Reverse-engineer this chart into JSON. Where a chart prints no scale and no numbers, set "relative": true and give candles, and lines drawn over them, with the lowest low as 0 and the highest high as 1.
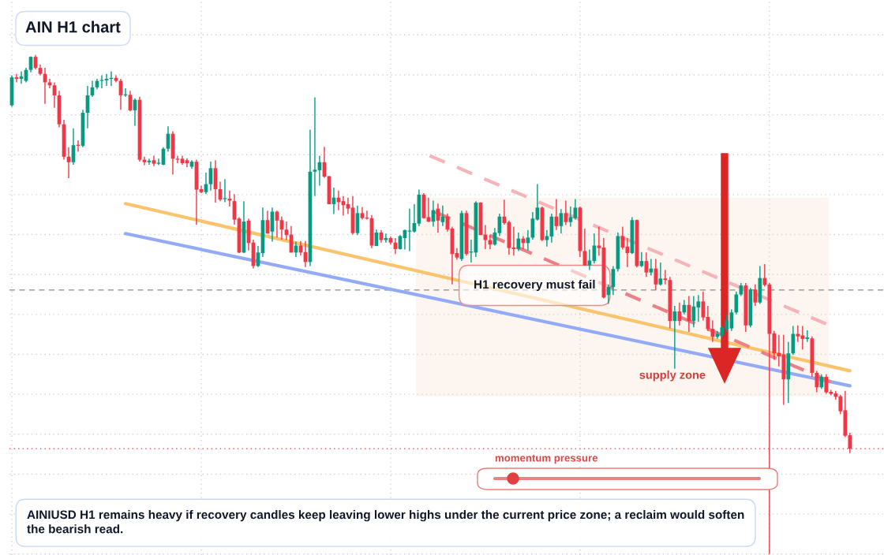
{
  "chart_data": {
    "type": "candlestick",
    "title": "AIN H1 chart",
    "relative": true,
    "grid": true,
    "tick_labels": false,
    "categories": [
      null,
      null,
      null,
      null,
      null,
      null,
      null,
      null,
      null,
      null,
      null,
      null,
      null,
      null,
      null,
      null,
      null,
      null,
      null,
      null,
      null,
      null,
      null,
      null,
      null,
      null,
      null,
      null,
      null,
      null,
      null,
      null,
      null,
      null,
      null,
      null,
      null,
      null,
      null,
      null,
      null,
      null,
      null,
      null,
      null,
      null,
      null,
      null,
      null,
      null,
      null,
      null,
      null,
      null,
      null,
      null,
      null,
      null,
      null,
      null,
      null,
      null,
      null,
      null,
      null,
      null,
      null,
      null,
      null,
      null,
      null,
      null,
      null,
      null,
      null,
      null,
      null,
      null,
      null,
      null,
      null,
      null,
      null,
      null,
      null,
      null,
      null,
      null,
      null,
      null,
      null,
      null,
      null,
      null,
      null,
      null,
      null,
      null,
      null,
      null,
      null,
      null,
      null,
      null,
      null,
      null,
      null,
      null,
      null,
      null,
      null,
      null,
      null,
      null,
      null,
      null,
      null,
      null,
      null,
      null,
      null,
      null,
      null,
      null,
      null,
      null,
      null,
      null,
      null,
      null,
      null,
      null,
      null,
      null,
      null,
      null,
      null,
      null,
      null,
      null,
      null,
      null,
      null,
      null,
      null,
      null,
      null,
      null,
      null,
      null,
      null,
      null,
      null,
      null,
      null,
      null,
      null,
      null,
      null,
      null,
      null,
      null,
      null,
      null,
      null,
      null,
      null,
      null,
      null,
      null,
      null,
      null,
      null,
      null,
      null,
      null,
      null,
      null
    ],
    "ohlc": [
      [
        0.899,
        0.959,
        0.896,
        0.955
      ],
      [
        0.955,
        0.962,
        0.945,
        0.952
      ],
      [
        0.952,
        0.967,
        0.942,
        0.957
      ],
      [
        0.948,
        0.974,
        0.945,
        0.97
      ],
      [
        0.97,
        0.997,
        0.965,
        0.996
      ],
      [
        0.996,
        1,
        0.971,
        0.974
      ],
      [
        0.974,
        0.981,
        0.959,
        0.962
      ],
      [
        0.962,
        0.974,
        0.902,
        0.945
      ],
      [
        0.945,
        0.952,
        0.933,
        0.939
      ],
      [
        0.939,
        0.945,
        0.894,
        0.919
      ],
      [
        0.919,
        0.928,
        0.855,
        0.861
      ],
      [
        0.861,
        0.87,
        0.79,
        0.796
      ],
      [
        0.796,
        0.815,
        0.753,
        0.785
      ],
      [
        0.785,
        0.853,
        0.78,
        0.819
      ],
      [
        0.819,
        0.829,
        0.806,
        0.818
      ],
      [
        0.818,
        0.89,
        0.815,
        0.884
      ],
      [
        0.884,
        0.938,
        0.853,
        0.919
      ],
      [
        0.919,
        0.948,
        0.916,
        0.935
      ],
      [
        0.935,
        0.952,
        0.931,
        0.948
      ],
      [
        0.948,
        0.959,
        0.933,
        0.949
      ],
      [
        0.949,
        0.962,
        0.938,
        0.952
      ],
      [
        0.952,
        0.967,
        0.938,
        0.954
      ],
      [
        0.954,
        0.959,
        0.945,
        0.948
      ],
      [
        0.948,
        0.952,
        0.89,
        0.919
      ],
      [
        0.919,
        0.933,
        0.916,
        0.92
      ],
      [
        0.92,
        0.928,
        0.887,
        0.889
      ],
      [
        0.889,
        0.913,
        0.858,
        0.91
      ],
      [
        0.91,
        0.916,
        0.786,
        0.79
      ],
      [
        0.79,
        0.796,
        0.779,
        0.785
      ],
      [
        0.785,
        0.792,
        0.78,
        0.788
      ],
      [
        0.789,
        0.798,
        0.777,
        0.782
      ],
      [
        0.782,
        0.792,
        0.779,
        0.783
      ],
      [
        0.78,
        0.815,
        0.779,
        0.812
      ],
      [
        0.812,
        0.857,
        0.806,
        0.842
      ],
      [
        0.842,
        0.847,
        0.76,
        0.792
      ],
      [
        0.792,
        0.798,
        0.783,
        0.79
      ],
      [
        0.792,
        0.798,
        0.78,
        0.783
      ],
      [
        0.789,
        0.793,
        0.775,
        0.783
      ],
      [
        0.776,
        0.789,
        0.772,
        0.786
      ],
      [
        0.786,
        0.79,
        0.66,
        0.73
      ],
      [
        0.731,
        0.738,
        0.723,
        0.725
      ],
      [
        0.725,
        0.764,
        0.721,
        0.741
      ],
      [
        0.741,
        0.786,
        0.728,
        0.773
      ],
      [
        0.773,
        0.789,
        0.704,
        0.731
      ],
      [
        0.731,
        0.746,
        0.707,
        0.71
      ],
      [
        0.711,
        0.751,
        0.705,
        0.712
      ],
      [
        0.712,
        0.728,
        0.696,
        0.708
      ],
      [
        0.707,
        0.721,
        0.66,
        0.67
      ],
      [
        0.672,
        0.675,
        0.603,
        0.604
      ],
      [
        0.604,
        0.707,
        0.603,
        0.666
      ],
      [
        0.668,
        0.672,
        0.608,
        0.623
      ],
      [
        0.624,
        0.63,
        0.572,
        0.577
      ],
      [
        0.577,
        0.617,
        0.575,
        0.604
      ],
      [
        0.603,
        0.694,
        0.595,
        0.669
      ],
      [
        0.669,
        0.688,
        0.642,
        0.642
      ],
      [
        0.646,
        0.694,
        0.626,
        0.686
      ],
      [
        0.686,
        0.688,
        0.634,
        0.668
      ],
      [
        0.669,
        0.676,
        0.63,
        0.65
      ],
      [
        0.65,
        0.666,
        0.629,
        0.639
      ],
      [
        0.64,
        0.657,
        0.604,
        0.604
      ],
      [
        0.604,
        0.626,
        0.595,
        0.618
      ],
      [
        0.618,
        0.627,
        0.598,
        0.604
      ],
      [
        0.605,
        0.627,
        0.575,
        0.585
      ],
      [
        0.585,
        0.85,
        0.577,
        0.766
      ],
      [
        0.766,
        0.915,
        0.717,
        0.77
      ],
      [
        0.769,
        0.798,
        0.738,
        0.785
      ],
      [
        0.785,
        0.816,
        0.754,
        0.756
      ],
      [
        0.757,
        0.757,
        0.701,
        0.701
      ],
      [
        0.701,
        0.734,
        0.681,
        0.714
      ],
      [
        0.714,
        0.728,
        0.689,
        0.705
      ],
      [
        0.707,
        0.717,
        0.678,
        0.699
      ],
      [
        0.701,
        0.714,
        0.681,
        0.692
      ],
      [
        0.694,
        0.717,
        0.64,
        0.643
      ],
      [
        0.643,
        0.698,
        0.639,
        0.683
      ],
      [
        0.683,
        0.695,
        0.67,
        0.673
      ],
      [
        0.673,
        0.688,
        0.67,
        0.672
      ],
      [
        0.673,
        0.679,
        0.613,
        0.618
      ],
      [
        0.617,
        0.65,
        0.617,
        0.644
      ],
      [
        0.644,
        0.649,
        0.624,
        0.629
      ],
      [
        0.629,
        0.642,
        0.624,
        0.633
      ],
      [
        0.633,
        0.636,
        0.62,
        0.624
      ],
      [
        0.624,
        0.633,
        0.601,
        0.611
      ],
      [
        0.611,
        0.639,
        0.61,
        0.637
      ],
      [
        0.633,
        0.65,
        0.61,
        0.649
      ],
      [
        0.646,
        0.692,
        0.607,
        0.647
      ],
      [
        0.646,
        0.701,
        0.644,
        0.663
      ],
      [
        0.662,
        0.73,
        0.657,
        0.72
      ],
      [
        0.72,
        0.723,
        0.672,
        0.673
      ],
      [
        0.675,
        0.714,
        0.665,
        0.666
      ],
      [
        0.666,
        0.708,
        0.656,
        0.689
      ],
      [
        0.692,
        0.702,
        0.644,
        0.668
      ],
      [
        0.665,
        0.698,
        0.657,
        0.676
      ],
      [
        0.676,
        0.682,
        0.646,
        0.65
      ],
      [
        0.652,
        0.656,
        0.54,
        0.601
      ],
      [
        0.603,
        0.613,
        0.59,
        0.594
      ],
      [
        0.591,
        0.688,
        0.587,
        0.683
      ],
      [
        0.683,
        0.688,
        0.598,
        0.601
      ],
      [
        0.604,
        0.63,
        0.584,
        0.605
      ],
      [
        0.604,
        0.707,
        0.595,
        0.704
      ],
      [
        0.704,
        0.705,
        0.639,
        0.639
      ],
      [
        0.64,
        0.659,
        0.611,
        0.629
      ],
      [
        0.629,
        0.639,
        0.611,
        0.62
      ],
      [
        0.62,
        0.653,
        0.618,
        0.644
      ],
      [
        0.643,
        0.682,
        0.637,
        0.676
      ],
      [
        0.676,
        0.71,
        0.66,
        0.663
      ],
      [
        0.665,
        0.668,
        0.6,
        0.613
      ],
      [
        0.614,
        0.656,
        0.598,
        0.611
      ],
      [
        0.611,
        0.644,
        0.607,
        0.632
      ],
      [
        0.632,
        0.637,
        0.611,
        0.623
      ],
      [
        0.623,
        0.649,
        0.608,
        0.634
      ],
      [
        0.634,
        0.685,
        0.63,
        0.672
      ],
      [
        0.67,
        0.741,
        0.668,
        0.694
      ],
      [
        0.694,
        0.696,
        0.627,
        0.629
      ],
      [
        0.629,
        0.649,
        0.616,
        0.637
      ],
      [
        0.636,
        0.682,
        0.624,
        0.676
      ],
      [
        0.676,
        0.711,
        0.649,
        0.657
      ],
      [
        0.657,
        0.691,
        0.642,
        0.683
      ],
      [
        0.683,
        0.708,
        0.659,
        0.665
      ],
      [
        0.665,
        0.696,
        0.656,
        0.675
      ],
      [
        0.673,
        0.711,
        0.67,
        0.694
      ],
      [
        0.694,
        0.696,
        0.595,
        0.607
      ],
      [
        0.607,
        0.652,
        0.578,
        0.578
      ],
      [
        0.578,
        0.61,
        0.569,
        0.588
      ],
      [
        0.587,
        0.642,
        0.582,
        0.618
      ],
      [
        0.618,
        0.656,
        0.598,
        0.613
      ],
      [
        0.614,
        0.633,
        0.512,
        0.514
      ],
      [
        0.519,
        0.54,
        0.501,
        0.535
      ],
      [
        0.535,
        0.577,
        0.519,
        0.571
      ],
      [
        0.571,
        0.644,
        0.566,
        0.637
      ],
      [
        0.637,
        0.656,
        0.61,
        0.614
      ],
      [
        0.616,
        0.633,
        0.575,
        0.603
      ],
      [
        0.603,
        0.675,
        0.601,
        0.669
      ],
      [
        0.669,
        0.67,
        0.574,
        0.577
      ],
      [
        0.577,
        0.605,
        0.575,
        0.587
      ],
      [
        0.587,
        0.604,
        0.555,
        0.564
      ],
      [
        0.564,
        0.591,
        0.558,
        0.572
      ],
      [
        0.572,
        0.591,
        0.529,
        0.54
      ],
      [
        0.54,
        0.584,
        0.538,
        0.552
      ],
      [
        0.552,
        0.569,
        0.54,
        0.549
      ],
      [
        0.549,
        0.555,
        0.452,
        0.467
      ],
      [
        0.467,
        0.497,
        0.371,
        0.486
      ],
      [
        0.486,
        0.504,
        0.458,
        0.467
      ],
      [
        0.484,
        0.509,
        0.48,
        0.499
      ],
      [
        0.499,
        0.517,
        0.445,
        0.467
      ],
      [
        0.467,
        0.517,
        0.454,
        0.496
      ],
      [
        0.494,
        0.519,
        0.465,
        0.506
      ],
      [
        0.506,
        0.526,
        0.468,
        0.474
      ],
      [
        0.475,
        0.497,
        0.447,
        0.451
      ],
      [
        0.451,
        0.468,
        0.425,
        0.435
      ],
      [
        0.435,
        0.447,
        0.431,
        0.441
      ],
      [
        0.439,
        0.457,
        0.434,
        0.454
      ],
      [
        0.451,
        0.48,
        0.445,
        0.468
      ],
      [
        0.452,
        0.49,
        0.447,
        0.484
      ],
      [
        0.484,
        0.526,
        0.48,
        0.52
      ],
      [
        0.52,
        0.543,
        0.517,
        0.538
      ],
      [
        0.538,
        0.543,
        0.445,
        0.458
      ],
      [
        0.458,
        0.533,
        0.454,
        0.53
      ],
      [
        0.53,
        0.54,
        0.497,
        0.504
      ],
      [
        0.504,
        0.577,
        0.501,
        0.553
      ],
      [
        0.553,
        0.581,
        0.536,
        0.539
      ],
      [
        0.54,
        0.543,
        0,
        0.441
      ],
      [
        0.442,
        0.447,
        0.389,
        0.402
      ],
      [
        0.403,
        0.439,
        0.376,
        0.396
      ],
      [
        0.4,
        0.439,
        0.299,
        0.35
      ],
      [
        0.35,
        0.425,
        0.303,
        0.402
      ],
      [
        0.402,
        0.457,
        0.399,
        0.441
      ],
      [
        0.441,
        0.458,
        0.425,
        0.436
      ],
      [
        0.438,
        0.457,
        0.41,
        0.431
      ],
      [
        0.431,
        0.448,
        0.425,
        0.434
      ],
      [
        0.432,
        0.436,
        0.355,
        0.363
      ],
      [
        0.363,
        0.367,
        0.324,
        0.334
      ],
      [
        0.334,
        0.36,
        0.331,
        0.355
      ],
      [
        0.355,
        0.36,
        0.321,
        0.324
      ],
      [
        0.325,
        0.329,
        0.318,
        0.321
      ],
      [
        0.322,
        0.327,
        0.309,
        0.315
      ],
      [
        0.316,
        0.319,
        0.28,
        0.286
      ],
      [
        0.288,
        0.327,
        0.234,
        0.237
      ],
      [
        0.238,
        0.243,
        0.202,
        0.211
      ]
    ],
    "series": [
      {
        "type": "line",
        "values": [
          null,
          null,
          null,
          null,
          null,
          null,
          null,
          null,
          null,
          null,
          null,
          null,
          null,
          null,
          null,
          null,
          null,
          null,
          null,
          null,
          null,
          null,
          null,
          null,
          0.702,
          null,
          null,
          null,
          null,
          null,
          null,
          null,
          null,
          null,
          null,
          null,
          null,
          null,
          null,
          null,
          null,
          null,
          null,
          null,
          null,
          null,
          null,
          null,
          null,
          null,
          null,
          null,
          null,
          null,
          null,
          null,
          null,
          null,
          null,
          null,
          null,
          null,
          null,
          null,
          null,
          null,
          null,
          null,
          null,
          null,
          null,
          null,
          null,
          null,
          null,
          null,
          null,
          null,
          null,
          null,
          null,
          null,
          null,
          null,
          null,
          null,
          null,
          null,
          null,
          null,
          null,
          null,
          null,
          null,
          null,
          null,
          null,
          null,
          null,
          null,
          null,
          null,
          null,
          null,
          null,
          null,
          null,
          null,
          null,
          null,
          null,
          null,
          null,
          null,
          null,
          null,
          null,
          null,
          null,
          null,
          null,
          null,
          null,
          null,
          null,
          null,
          null,
          null,
          null,
          null,
          null,
          null,
          null,
          null,
          null,
          null,
          null,
          null,
          null,
          null,
          null,
          null,
          null,
          null,
          null,
          null,
          null,
          null,
          null,
          null,
          null,
          null,
          null,
          null,
          null,
          null,
          null,
          null,
          null,
          null,
          null,
          null,
          null,
          null,
          null,
          null,
          null,
          null,
          null,
          null,
          null,
          null,
          null,
          null,
          null,
          null,
          null,
          0.367
        ],
        "color": "#f9c46b",
        "line_style": "solid"
      },
      {
        "type": "line",
        "values": [
          null,
          null,
          null,
          null,
          null,
          null,
          null,
          null,
          null,
          null,
          null,
          null,
          null,
          null,
          null,
          null,
          null,
          null,
          null,
          null,
          null,
          null,
          null,
          null,
          0.642,
          null,
          null,
          null,
          null,
          null,
          null,
          null,
          null,
          null,
          null,
          null,
          null,
          null,
          null,
          null,
          null,
          null,
          null,
          null,
          null,
          null,
          null,
          null,
          null,
          null,
          null,
          null,
          null,
          null,
          null,
          null,
          null,
          null,
          null,
          null,
          null,
          null,
          null,
          null,
          null,
          null,
          null,
          null,
          null,
          null,
          null,
          null,
          null,
          null,
          null,
          null,
          null,
          null,
          null,
          null,
          null,
          null,
          null,
          null,
          null,
          null,
          null,
          null,
          null,
          null,
          null,
          null,
          null,
          null,
          null,
          null,
          null,
          null,
          null,
          null,
          null,
          null,
          null,
          null,
          null,
          null,
          null,
          null,
          null,
          null,
          null,
          null,
          null,
          null,
          null,
          null,
          null,
          null,
          null,
          null,
          null,
          null,
          null,
          null,
          null,
          null,
          null,
          null,
          null,
          null,
          null,
          null,
          null,
          null,
          null,
          null,
          null,
          null,
          null,
          null,
          null,
          null,
          null,
          null,
          null,
          null,
          null,
          null,
          null,
          null,
          null,
          null,
          null,
          null,
          null,
          null,
          null,
          null,
          null,
          null,
          null,
          null,
          null,
          null,
          null,
          null,
          null,
          null,
          null,
          null,
          null,
          null,
          null,
          null,
          null,
          null,
          null,
          0.337
        ],
        "color": "#93aaf6",
        "line_style": "solid"
      },
      {
        "type": "line",
        "values": [
          null,
          null,
          null,
          null,
          null,
          null,
          null,
          null,
          null,
          null,
          null,
          null,
          null,
          null,
          null,
          null,
          null,
          null,
          null,
          null,
          null,
          null,
          null,
          null,
          null,
          null,
          null,
          null,
          null,
          null,
          null,
          null,
          null,
          null,
          null,
          null,
          null,
          null,
          null,
          null,
          null,
          null,
          null,
          null,
          null,
          null,
          null,
          null,
          null,
          null,
          null,
          null,
          null,
          null,
          null,
          null,
          null,
          null,
          null,
          null,
          null,
          null,
          null,
          null,
          null,
          null,
          null,
          null,
          null,
          null,
          null,
          null,
          null,
          null,
          null,
          null,
          null,
          null,
          null,
          null,
          null,
          null,
          null,
          null,
          null,
          null,
          null,
          0.803,
          null,
          null,
          null,
          null,
          null,
          null,
          null,
          null,
          null,
          null,
          null,
          null,
          null,
          null,
          null,
          null,
          null,
          null,
          null,
          null,
          null,
          null,
          null,
          null,
          null,
          null,
          null,
          null,
          null,
          null,
          null,
          null,
          null,
          null,
          null,
          null,
          null,
          null,
          null,
          null,
          null,
          null,
          null,
          null,
          null,
          null,
          null,
          null,
          null,
          null,
          null,
          null,
          null,
          null,
          null,
          null,
          null,
          null,
          null,
          null,
          null,
          null,
          null,
          null,
          null,
          null,
          null,
          null,
          null,
          null,
          null,
          null,
          null,
          null,
          null,
          null,
          null,
          null,
          null,
          null,
          null,
          null,
          null,
          null,
          0.461,
          null,
          null,
          null,
          null,
          null
        ],
        "color": "#f6b3b8",
        "line_style": "dashed"
      },
      {
        "type": "line",
        "values": [
          null,
          null,
          null,
          null,
          null,
          null,
          null,
          null,
          null,
          null,
          null,
          null,
          null,
          null,
          null,
          null,
          null,
          null,
          null,
          null,
          null,
          null,
          null,
          null,
          null,
          null,
          null,
          null,
          null,
          null,
          null,
          null,
          null,
          null,
          null,
          null,
          null,
          null,
          null,
          null,
          null,
          null,
          null,
          null,
          null,
          null,
          null,
          null,
          null,
          null,
          null,
          null,
          null,
          null,
          null,
          null,
          null,
          null,
          null,
          null,
          null,
          null,
          null,
          null,
          null,
          null,
          null,
          null,
          null,
          null,
          null,
          null,
          null,
          null,
          null,
          null,
          null,
          null,
          null,
          null,
          null,
          null,
          null,
          null,
          null,
          null,
          null,
          0.695,
          null,
          null,
          null,
          null,
          null,
          null,
          null,
          null,
          null,
          null,
          null,
          null,
          null,
          null,
          null,
          null,
          null,
          null,
          null,
          null,
          null,
          null,
          null,
          null,
          null,
          null,
          null,
          null,
          null,
          null,
          null,
          null,
          null,
          null,
          null,
          null,
          null,
          null,
          null,
          null,
          null,
          null,
          null,
          null,
          null,
          null,
          null,
          null,
          null,
          null,
          null,
          null,
          null,
          null,
          null,
          null,
          null,
          null,
          null,
          null,
          null,
          null,
          null,
          null,
          null,
          null,
          null,
          null,
          null,
          null,
          null,
          null,
          null,
          null,
          null,
          null,
          null,
          null,
          null,
          null,
          null,
          null,
          null,
          null,
          null,
          0.345,
          null,
          null,
          null,
          null
        ],
        "color": "#ea8088",
        "line_style": "dashed"
      }
    ],
    "ref_lines": [
      {
        "axis": "y",
        "value": 0.529,
        "color": "#8a8a8a",
        "line_style": "dashed"
      },
      {
        "axis": "y",
        "value": 0.211,
        "color": "#f23645",
        "line_style": "dotted"
      }
    ],
    "bands": [
      {
        "axis": "y",
        "from": 0.316,
        "to": 0.714,
        "label": "supply zone",
        "color": "#fdf5ef"
      }
    ],
    "annotations": [
      "H1 recovery must fail",
      "momentum pressure",
      "AINIUSD H1 remains heavy if recovery candles keep leaving lower highs under the current price zone; a reclaim would soften the bearish read."
    ]
  }
}
